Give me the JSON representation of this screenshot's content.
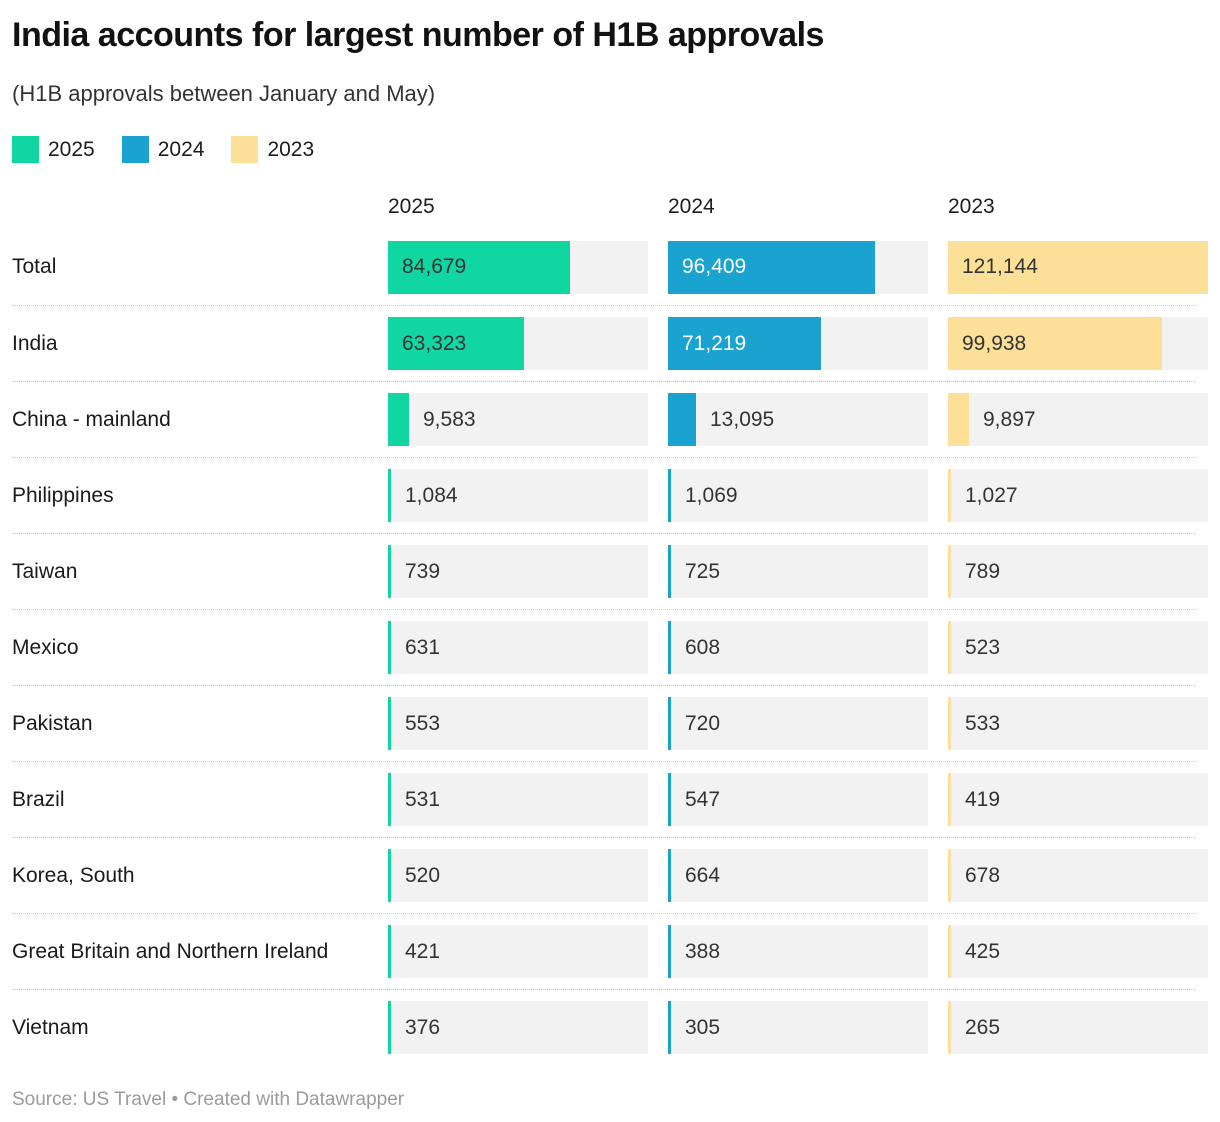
{
  "header": {
    "title": "India accounts for largest number of H1B approvals",
    "subtitle": "(H1B approvals between January and May)"
  },
  "legend": [
    {
      "label": "2025",
      "color": "#10d6a2"
    },
    {
      "label": "2024",
      "color": "#1aa2d0"
    },
    {
      "label": "2023",
      "color": "#fde098"
    }
  ],
  "columns": [
    "2025",
    "2024",
    "2023"
  ],
  "chart_data": {
    "type": "bar",
    "title": "India accounts for largest number of H1B approvals",
    "subtitle": "(H1B approvals between January and May)",
    "categories": [
      "Total",
      "India",
      "China - mainland",
      "Philippines",
      "Taiwan",
      "Mexico",
      "Pakistan",
      "Brazil",
      "Korea, South",
      "Great Britain and Northern Ireland",
      "Vietnam"
    ],
    "series": [
      {
        "name": "2025",
        "color": "#10d6a2",
        "inside_text_color": "#333333",
        "values": [
          84679,
          63323,
          9583,
          1084,
          739,
          631,
          553,
          531,
          520,
          421,
          376
        ]
      },
      {
        "name": "2024",
        "color": "#1aa2d0",
        "inside_text_color": "#ffffff",
        "values": [
          96409,
          71219,
          13095,
          1069,
          725,
          608,
          720,
          547,
          664,
          388,
          305
        ]
      },
      {
        "name": "2023",
        "color": "#fde098",
        "inside_text_color": "#333333",
        "values": [
          121144,
          99938,
          9897,
          1027,
          789,
          523,
          533,
          419,
          678,
          425,
          265
        ]
      }
    ],
    "max_value": 121144,
    "outside_text_color": "#333333",
    "track_color": "#f2f2f2",
    "legend_position": "top",
    "grid": "off",
    "value_format": "thousands-comma"
  },
  "footer": {
    "text": "Source: US Travel • Created with Datawrapper"
  }
}
